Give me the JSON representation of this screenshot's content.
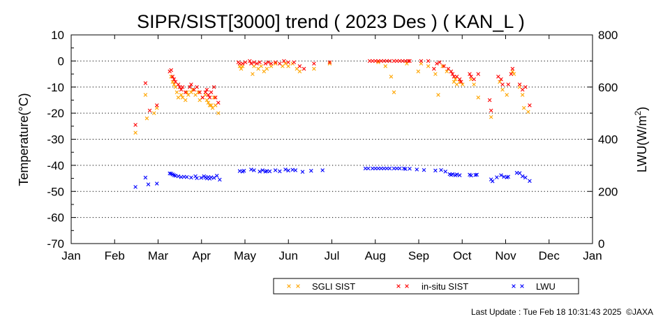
{
  "chart_data": {
    "type": "scatter",
    "title": "SIPR/SIST[3000] trend ( 2023 Des ) ( KAN_L )",
    "ylabel_left": "Temperature(°C)",
    "ylabel_right_main": "LWU(W/m",
    "ylabel_right_sup": "2",
    "ylabel_right_close": ")",
    "x_ticks": [
      "Jan",
      "Feb",
      "Mar",
      "Apr",
      "May",
      "Jun",
      "Jul",
      "Aug",
      "Sep",
      "Oct",
      "Nov",
      "Dec",
      "Jan"
    ],
    "y_left_ticks": [
      10,
      0,
      -10,
      -20,
      -30,
      -40,
      -50,
      -60,
      -70
    ],
    "y_left_range": [
      -70,
      10
    ],
    "y_right_ticks": [
      0,
      200,
      400,
      600,
      800
    ],
    "y_right_range": [
      0,
      800
    ],
    "grid": "horizontal dotted",
    "legend_position": "bottom-right",
    "series": [
      {
        "name": "SGLI SIST",
        "color": "#ffa500",
        "axis": "left",
        "points": [
          [
            45,
            -27.5
          ],
          [
            52,
            -13
          ],
          [
            53,
            -22
          ],
          [
            58,
            -20
          ],
          [
            60,
            -18
          ],
          [
            70,
            -6
          ],
          [
            71,
            -8
          ],
          [
            72,
            -9
          ],
          [
            73,
            -10
          ],
          [
            74,
            -12
          ],
          [
            75,
            -14
          ],
          [
            77,
            -13
          ],
          [
            78,
            -14
          ],
          [
            80,
            -15
          ],
          [
            81,
            -12
          ],
          [
            82,
            -13
          ],
          [
            84,
            -12
          ],
          [
            85,
            -11
          ],
          [
            87,
            -13
          ],
          [
            89,
            -12
          ],
          [
            90,
            -15
          ],
          [
            92,
            -14
          ],
          [
            94,
            -13
          ],
          [
            95,
            -15
          ],
          [
            96,
            -16
          ],
          [
            97,
            -17
          ],
          [
            98,
            -17
          ],
          [
            99,
            -18
          ],
          [
            100,
            -14
          ],
          [
            101,
            -17
          ],
          [
            103,
            -20
          ],
          [
            118,
            -2
          ],
          [
            119,
            -3
          ],
          [
            120,
            -2
          ],
          [
            127,
            -5
          ],
          [
            128,
            -2
          ],
          [
            131,
            -3
          ],
          [
            133,
            -2
          ],
          [
            135,
            -4
          ],
          [
            137,
            -3
          ],
          [
            140,
            -2
          ],
          [
            143,
            -1
          ],
          [
            148,
            -2
          ],
          [
            150,
            -1
          ],
          [
            152,
            -2
          ],
          [
            155,
            -1
          ],
          [
            158,
            -3
          ],
          [
            160,
            -4
          ],
          [
            170,
            -3
          ],
          [
            181,
            -1
          ],
          [
            215,
            -0.5
          ],
          [
            220,
            -2
          ],
          [
            224,
            -6
          ],
          [
            226,
            -12
          ],
          [
            235,
            -1
          ],
          [
            243,
            -4
          ],
          [
            245,
            -1
          ],
          [
            250,
            -2
          ],
          [
            255,
            -5
          ],
          [
            257,
            -13
          ],
          [
            260,
            -2
          ],
          [
            263,
            -4
          ],
          [
            268,
            -8
          ],
          [
            269,
            -7
          ],
          [
            270,
            -9
          ],
          [
            272,
            -8
          ],
          [
            274,
            -9
          ],
          [
            280,
            -7
          ],
          [
            282,
            -9
          ],
          [
            285,
            -14
          ],
          [
            294,
            -21.5
          ],
          [
            300,
            -8
          ],
          [
            302,
            -11
          ],
          [
            305,
            -13
          ],
          [
            309,
            -4
          ],
          [
            310,
            -5
          ],
          [
            314,
            -10
          ],
          [
            316,
            -13
          ],
          [
            317,
            -18
          ],
          [
            320,
            -19.5
          ]
        ]
      },
      {
        "name": "in-situ SIST",
        "color": "#ff0000",
        "axis": "left",
        "points": [
          [
            45,
            -24.5
          ],
          [
            52,
            -8.5
          ],
          [
            55,
            -19
          ],
          [
            60,
            -17
          ],
          [
            69,
            -4
          ],
          [
            70,
            -3.5
          ],
          [
            71,
            -6
          ],
          [
            72,
            -7
          ],
          [
            73,
            -8
          ],
          [
            75,
            -9
          ],
          [
            76,
            -10
          ],
          [
            77,
            -11
          ],
          [
            78,
            -10
          ],
          [
            80,
            -12
          ],
          [
            83,
            -10
          ],
          [
            84,
            -9
          ],
          [
            86,
            -11
          ],
          [
            88,
            -10
          ],
          [
            90,
            -12
          ],
          [
            92,
            -14
          ],
          [
            94,
            -12
          ],
          [
            95,
            -11
          ],
          [
            96,
            -13
          ],
          [
            97,
            -14
          ],
          [
            98,
            -12
          ],
          [
            100,
            -10
          ],
          [
            101,
            -14
          ],
          [
            103,
            -16
          ],
          [
            117,
            -0.5
          ],
          [
            118,
            -1
          ],
          [
            120,
            -1
          ],
          [
            122,
            -0.5
          ],
          [
            125,
            0
          ],
          [
            126,
            -1
          ],
          [
            128,
            -0.5
          ],
          [
            130,
            -1
          ],
          [
            132,
            -0.5
          ],
          [
            136,
            -1
          ],
          [
            138,
            -0.5
          ],
          [
            140,
            -1
          ],
          [
            143,
            -0.5
          ],
          [
            146,
            -1
          ],
          [
            149,
            0
          ],
          [
            152,
            -0.5
          ],
          [
            156,
            -0.5
          ],
          [
            160,
            -2
          ],
          [
            163,
            -3
          ],
          [
            170,
            -1
          ],
          [
            181,
            -0.5
          ],
          [
            209,
            0
          ],
          [
            211,
            0
          ],
          [
            213,
            0
          ],
          [
            215,
            0
          ],
          [
            217,
            0
          ],
          [
            219,
            0
          ],
          [
            221,
            0
          ],
          [
            223,
            0
          ],
          [
            226,
            0
          ],
          [
            228,
            0
          ],
          [
            230,
            0
          ],
          [
            232,
            0
          ],
          [
            234,
            0
          ],
          [
            236,
            0
          ],
          [
            237,
            0
          ],
          [
            245,
            0
          ],
          [
            250,
            0
          ],
          [
            254,
            -3
          ],
          [
            256,
            -1
          ],
          [
            258,
            -0.5
          ],
          [
            261,
            -2
          ],
          [
            264,
            -3
          ],
          [
            266,
            -4
          ],
          [
            267,
            -5
          ],
          [
            268,
            -6
          ],
          [
            270,
            -6
          ],
          [
            272,
            -7
          ],
          [
            273,
            -8
          ],
          [
            279,
            -5
          ],
          [
            280,
            -6
          ],
          [
            282,
            -7
          ],
          [
            285,
            -5
          ],
          [
            293,
            -15
          ],
          [
            294,
            -19
          ],
          [
            299,
            -6
          ],
          [
            301,
            -7
          ],
          [
            302,
            -9
          ],
          [
            306,
            -9
          ],
          [
            308,
            -5
          ],
          [
            309,
            -3
          ],
          [
            314,
            -9
          ],
          [
            316,
            -11
          ],
          [
            318,
            -10
          ],
          [
            321,
            -17
          ]
        ]
      },
      {
        "name": "LWU",
        "color": "#0000ff",
        "axis": "right",
        "points": [
          [
            45,
            217
          ],
          [
            52,
            253
          ],
          [
            54,
            227
          ],
          [
            60,
            230
          ],
          [
            69,
            269
          ],
          [
            70,
            268
          ],
          [
            71,
            265
          ],
          [
            72,
            262
          ],
          [
            73,
            260
          ],
          [
            75,
            258
          ],
          [
            77,
            255
          ],
          [
            79,
            256
          ],
          [
            81,
            255
          ],
          [
            84,
            253
          ],
          [
            87,
            258
          ],
          [
            88,
            251
          ],
          [
            91,
            252
          ],
          [
            93,
            258
          ],
          [
            94,
            254
          ],
          [
            95,
            250
          ],
          [
            96,
            255
          ],
          [
            97,
            249
          ],
          [
            98,
            254
          ],
          [
            100,
            252
          ],
          [
            102,
            260
          ],
          [
            104,
            245
          ],
          [
            118,
            278
          ],
          [
            120,
            276
          ],
          [
            121,
            279
          ],
          [
            126,
            284
          ],
          [
            128,
            281
          ],
          [
            132,
            276
          ],
          [
            134,
            281
          ],
          [
            136,
            276
          ],
          [
            137,
            278
          ],
          [
            139,
            277
          ],
          [
            143,
            281
          ],
          [
            146,
            277
          ],
          [
            150,
            284
          ],
          [
            152,
            280
          ],
          [
            155,
            283
          ],
          [
            157,
            281
          ],
          [
            162,
            275
          ],
          [
            168,
            279
          ],
          [
            176,
            281
          ],
          [
            206,
            288
          ],
          [
            208,
            288
          ],
          [
            211,
            288
          ],
          [
            213,
            288
          ],
          [
            215,
            288
          ],
          [
            217,
            288
          ],
          [
            219,
            288
          ],
          [
            221,
            288
          ],
          [
            223,
            288
          ],
          [
            226,
            288
          ],
          [
            228,
            288
          ],
          [
            230,
            288
          ],
          [
            233,
            288
          ],
          [
            234,
            286
          ],
          [
            237,
            287
          ],
          [
            242,
            284
          ],
          [
            247,
            282
          ],
          [
            255,
            280
          ],
          [
            259,
            282
          ],
          [
            262,
            276
          ],
          [
            265,
            266
          ],
          [
            266,
            263
          ],
          [
            267,
            266
          ],
          [
            269,
            262
          ],
          [
            270,
            265
          ],
          [
            272,
            262
          ],
          [
            279,
            264
          ],
          [
            280,
            261
          ],
          [
            283,
            263
          ],
          [
            284,
            264
          ],
          [
            294,
            246
          ],
          [
            295,
            239
          ],
          [
            298,
            254
          ],
          [
            301,
            262
          ],
          [
            303,
            256
          ],
          [
            305,
            254
          ],
          [
            306,
            256
          ],
          [
            312,
            271
          ],
          [
            314,
            270
          ],
          [
            316,
            258
          ],
          [
            318,
            253
          ],
          [
            321,
            240
          ]
        ]
      }
    ]
  },
  "legend": [
    {
      "label": "SGLI SIST",
      "color": "#ffa500"
    },
    {
      "label": "in-situ SIST",
      "color": "#ff0000"
    },
    {
      "label": "LWU",
      "color": "#0000ff"
    }
  ],
  "footer": {
    "update": "Last Update : Tue Feb 18 10:31:43 2025",
    "credit": "©JAXA"
  }
}
